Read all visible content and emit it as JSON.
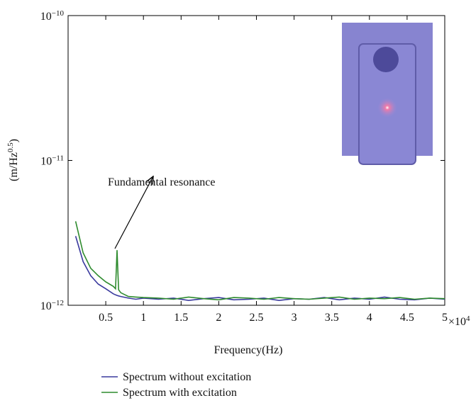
{
  "chart_data": {
    "type": "line",
    "y_label": "(m/Hz^{0.5})",
    "x_label": "Frequency(Hz)",
    "x_multiplier": "×10^{4}",
    "annotation": "Fundamental resonance",
    "log_y": true,
    "grid": false,
    "xlim": [
      0,
      5
    ],
    "xticks": [
      0.5,
      1,
      1.5,
      2,
      2.5,
      3,
      3.5,
      4,
      4.5,
      5
    ],
    "ylim": [
      1e-12,
      1e-10
    ],
    "yticks": [
      {
        "value": 1e-12,
        "label": "10^{−12}"
      },
      {
        "value": 1e-11,
        "label": "10^{−11}"
      },
      {
        "value": 1e-10,
        "label": "10^{−10}"
      }
    ],
    "x": [
      0.1,
      0.2,
      0.3,
      0.4,
      0.5,
      0.6,
      0.63,
      0.65,
      0.67,
      0.7,
      0.8,
      0.9,
      1.0,
      1.2,
      1.4,
      1.6,
      1.8,
      2.0,
      2.2,
      2.4,
      2.6,
      2.8,
      3.0,
      3.2,
      3.4,
      3.6,
      3.8,
      4.0,
      4.2,
      4.4,
      4.6,
      4.8,
      5.0
    ],
    "series": [
      {
        "name": "Spectrum without excitation",
        "color": "#3a3a9e",
        "values": [
          3e-12,
          2e-12,
          1.6e-12,
          1.4e-12,
          1.3e-12,
          1.2e-12,
          1.18e-12,
          1.17e-12,
          1.16e-12,
          1.15e-12,
          1.12e-12,
          1.1e-12,
          1.12e-12,
          1.1e-12,
          1.12e-12,
          1.08e-12,
          1.11e-12,
          1.13e-12,
          1.09e-12,
          1.1e-12,
          1.12e-12,
          1.08e-12,
          1.11e-12,
          1.1e-12,
          1.13e-12,
          1.09e-12,
          1.12e-12,
          1.1e-12,
          1.14e-12,
          1.1e-12,
          1.09e-12,
          1.12e-12,
          1.1e-12
        ]
      },
      {
        "name": "Spectrum with excitation",
        "color": "#2e8b2e",
        "values": [
          3.8e-12,
          2.3e-12,
          1.8e-12,
          1.6e-12,
          1.45e-12,
          1.35e-12,
          1.3e-12,
          2.4e-12,
          1.28e-12,
          1.22e-12,
          1.15e-12,
          1.14e-12,
          1.13e-12,
          1.12e-12,
          1.1e-12,
          1.14e-12,
          1.11e-12,
          1.09e-12,
          1.13e-12,
          1.12e-12,
          1.1e-12,
          1.13e-12,
          1.11e-12,
          1.1e-12,
          1.12e-12,
          1.14e-12,
          1.1e-12,
          1.12e-12,
          1.11e-12,
          1.13e-12,
          1.1e-12,
          1.12e-12,
          1.11e-12
        ]
      }
    ]
  }
}
